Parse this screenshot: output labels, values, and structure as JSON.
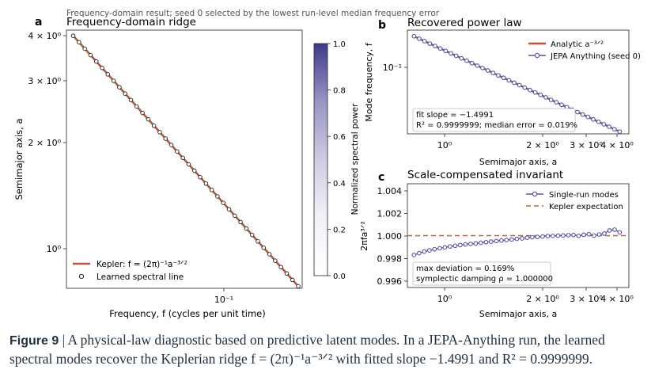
{
  "suptitle": "Frequency-domain result; seed 0 selected by the lowest run-level median frequency error",
  "panel_a": {
    "letter": "a",
    "title": "Frequency-domain ridge",
    "xlabel": "Frequency, f (cycles per unit time)",
    "ylabel": "Semimajor axis, a",
    "ytick_labels": [
      "4 × 10⁰",
      "3 × 10⁰",
      "2 × 10⁰",
      "10⁰"
    ],
    "xtick_labels": [
      "10⁻¹"
    ],
    "legend": {
      "line": "Kepler: f = (2π)⁻¹a⁻³ᐟ²",
      "points": "Learned spectral line"
    },
    "colorbar": {
      "label": "Normalized spectral power",
      "ticks": [
        "1.0",
        "0.8",
        "0.6",
        "0.4",
        "0.2",
        "0.0"
      ]
    }
  },
  "panel_b": {
    "letter": "b",
    "title": "Recovered power law",
    "xlabel": "Semimajor axis, a",
    "ylabel": "Mode frequency, f",
    "ytick_labels": [
      "10⁻¹"
    ],
    "xtick_labels": [
      "10⁰",
      "2 × 10⁰",
      "3 × 10⁰",
      "4 × 10⁰"
    ],
    "legend": {
      "line": "Analytic a⁻³ᐟ²",
      "points": "JEPA Anything (seed 0)"
    },
    "stats_line1": "fit slope = −1.4991",
    "stats_line2": "R² = 0.9999999; median error = 0.019%"
  },
  "panel_c": {
    "letter": "c",
    "title": "Scale-compensated invariant",
    "xlabel": "Semimajor axis, a",
    "ylabel": "2πfa³ᐟ²",
    "ytick_labels": [
      "1.004",
      "1.002",
      "1.000",
      "0.998",
      "0.996"
    ],
    "xtick_labels": [
      "10⁰",
      "2 × 10⁰",
      "3 × 10⁰",
      "4 × 10⁰"
    ],
    "legend": {
      "points": "Single-run modes",
      "line": "Kepler expectation"
    },
    "stats_line1": "max deviation = 0.169%",
    "stats_line2": "symplectic damping ρ = 1.000000"
  },
  "caption": {
    "label": "Figure 9",
    "text": " | A physical-law diagnostic based on predictive latent modes. In a JEPA-Anything run, the learned spectral modes recover the Keplerian ridge f = (2π)⁻¹a⁻³ᐟ² with fitted slope −1.4991 and R² = 0.9999999."
  },
  "colors": {
    "analytic": "#b5583a",
    "learned": "#5b53a8",
    "marker_face": "#ffffff",
    "cmap_top": "#3e3a8c"
  },
  "chart_data": [
    {
      "type": "scatter",
      "title": "Frequency-domain ridge",
      "xlabel": "Frequency, f (cycles per unit time)",
      "ylabel": "Semimajor axis, a",
      "xscale": "log",
      "yscale": "log",
      "xlim": [
        0.0185,
        0.232
      ],
      "ylim": [
        0.79,
        4.15
      ],
      "a_range": [
        0.8,
        4.0
      ],
      "n_points": 40,
      "series": [
        {
          "name": "Kepler: f = (2π)⁻¹a⁻³ᐟ²",
          "kind": "line",
          "x": [
            0.0199,
            0.2225
          ],
          "y": [
            4.0,
            0.8
          ]
        },
        {
          "name": "Learned spectral line",
          "kind": "points",
          "x_formula": "f = (2π)⁻¹a⁻³ᐟ²",
          "y_from": 0.8,
          "y_to": 4.0
        }
      ],
      "colorbar": {
        "label": "Normalized spectral power",
        "range": [
          0.0,
          1.0
        ]
      }
    },
    {
      "type": "line",
      "title": "Recovered power law",
      "xlabel": "Semimajor axis, a",
      "ylabel": "Mode frequency, f",
      "xscale": "log",
      "yscale": "log",
      "xlim": [
        0.76,
        4.3
      ],
      "ylim": [
        0.0188,
        0.26
      ],
      "series": [
        {
          "name": "Analytic a⁻³ᐟ²",
          "kind": "line",
          "x": [
            0.8,
            4.0
          ],
          "y": [
            0.2225,
            0.0199
          ]
        },
        {
          "name": "JEPA Anything (seed 0)",
          "kind": "points",
          "x_from": 0.8,
          "x_to": 4.0,
          "fit_slope": -1.4991
        }
      ]
    },
    {
      "type": "line",
      "title": "Scale-compensated invariant",
      "xlabel": "Semimajor axis, a",
      "ylabel": "2πfa³ᐟ²",
      "xscale": "log",
      "xlim": [
        0.76,
        4.3
      ],
      "ylim": [
        0.9955,
        1.0045
      ],
      "x": [
        0.8,
        0.833,
        0.867,
        0.903,
        0.94,
        0.979,
        1.019,
        1.061,
        1.104,
        1.149,
        1.197,
        1.246,
        1.297,
        1.35,
        1.406,
        1.463,
        1.524,
        1.586,
        1.651,
        1.719,
        1.79,
        1.863,
        1.94,
        2.019,
        2.102,
        2.189,
        2.279,
        2.372,
        2.47,
        2.571,
        2.677,
        2.787,
        2.901,
        3.02,
        3.145,
        3.274,
        3.408,
        3.548,
        3.694,
        3.846,
        4.0
      ],
      "series": [
        {
          "name": "Single-run modes",
          "values": [
            0.99832,
            0.99848,
            0.99862,
            0.99872,
            0.99882,
            0.9989,
            0.99898,
            0.99906,
            0.99912,
            0.99918,
            0.99924,
            0.99928,
            0.99932,
            0.99938,
            0.99943,
            0.99948,
            0.99953,
            0.99958,
            0.99962,
            0.99966,
            0.99972,
            0.99976,
            0.99982,
            0.99986,
            0.99989,
            0.99992,
            0.99996,
            0.99998,
            1.0,
            1.00002,
            1.00004,
            1.00006,
            0.99998,
            1.00008,
            1.00012,
            1.0,
            1.0001,
            1.00018,
            1.00045,
            1.00052,
            1.00028
          ]
        },
        {
          "name": "Kepler expectation",
          "kind": "hline",
          "y": 1.0
        }
      ]
    }
  ]
}
